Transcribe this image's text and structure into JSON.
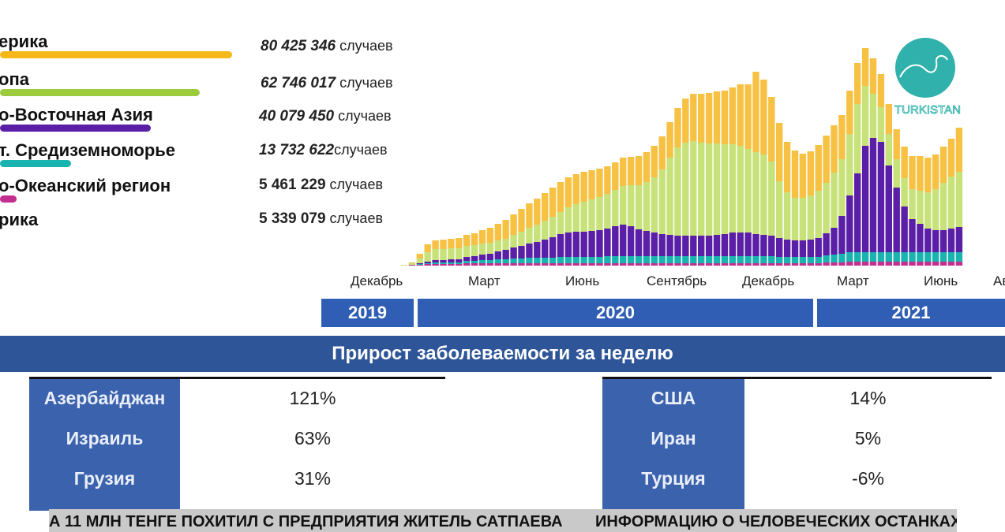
{
  "legend": [
    {
      "label": "ерика",
      "value_num": "80 425 346",
      "value_unit": "случаев",
      "color": "#f5b818"
    },
    {
      "label": "опа",
      "value_num": "62 746 017",
      "value_unit": "случаев",
      "color": "#9ccc3c"
    },
    {
      "label": "о-Восточная Азия",
      "value_num": "40 079 450",
      "value_unit": "случаев",
      "color": "#5a1fa6"
    },
    {
      "label": "т. Средиземноморье",
      "value_num": "13 732 622",
      "value_unit": "случаев",
      "color": "#19b4b0"
    },
    {
      "label": "о-Океанский регион",
      "value_num": "5 461 229",
      "value_unit": "случаев",
      "color": "#c42e8e"
    },
    {
      "label": "рика",
      "value_num": "5 339 079",
      "value_unit": "случаев",
      "color": "#e03040"
    }
  ],
  "chart_data": {
    "type": "bar",
    "stacked": true,
    "x_tick_labels": [
      "Декабрь",
      "Март",
      "Июнь",
      "Сентябрь",
      "Декабрь",
      "Март",
      "Июнь",
      "Ав"
    ],
    "years": [
      "2019",
      "2020",
      "2021"
    ],
    "series_colors": [
      "#c42e8e",
      "#19b4b0",
      "#5a1fa6",
      "#c8e27a",
      "#f7c143"
    ],
    "weeks": [
      [
        0,
        0,
        0,
        0,
        0
      ],
      [
        0,
        0,
        0,
        0,
        0
      ],
      [
        0,
        0,
        0,
        1,
        0
      ],
      [
        1,
        0,
        0,
        2,
        1
      ],
      [
        1,
        1,
        1,
        6,
        6
      ],
      [
        2,
        1,
        2,
        12,
        10
      ],
      [
        2,
        2,
        3,
        14,
        11
      ],
      [
        2,
        2,
        3,
        14,
        12
      ],
      [
        2,
        2,
        4,
        14,
        12
      ],
      [
        2,
        2,
        4,
        14,
        13
      ],
      [
        3,
        3,
        5,
        14,
        14
      ],
      [
        3,
        3,
        6,
        14,
        15
      ],
      [
        3,
        4,
        7,
        14,
        17
      ],
      [
        3,
        4,
        8,
        14,
        19
      ],
      [
        3,
        5,
        10,
        14,
        21
      ],
      [
        3,
        5,
        12,
        14,
        24
      ],
      [
        3,
        6,
        14,
        16,
        26
      ],
      [
        3,
        6,
        16,
        18,
        29
      ],
      [
        3,
        7,
        18,
        20,
        31
      ],
      [
        3,
        7,
        20,
        22,
        33
      ],
      [
        3,
        7,
        23,
        24,
        35
      ],
      [
        3,
        7,
        26,
        26,
        37
      ],
      [
        3,
        8,
        29,
        28,
        38
      ],
      [
        3,
        8,
        31,
        32,
        38
      ],
      [
        3,
        8,
        32,
        35,
        38
      ],
      [
        3,
        8,
        32,
        38,
        38
      ],
      [
        3,
        8,
        33,
        40,
        37
      ],
      [
        3,
        8,
        34,
        42,
        36
      ],
      [
        3,
        9,
        35,
        44,
        35
      ],
      [
        3,
        9,
        38,
        46,
        35
      ],
      [
        3,
        9,
        40,
        49,
        36
      ],
      [
        3,
        9,
        38,
        52,
        36
      ],
      [
        3,
        9,
        34,
        56,
        37
      ],
      [
        3,
        9,
        32,
        62,
        38
      ],
      [
        3,
        9,
        30,
        70,
        40
      ],
      [
        3,
        9,
        28,
        82,
        42
      ],
      [
        3,
        9,
        27,
        98,
        45
      ],
      [
        3,
        9,
        26,
        112,
        50
      ],
      [
        3,
        9,
        26,
        118,
        56
      ],
      [
        3,
        9,
        26,
        120,
        60
      ],
      [
        3,
        9,
        26,
        118,
        62
      ],
      [
        3,
        9,
        26,
        117,
        64
      ],
      [
        3,
        9,
        27,
        116,
        66
      ],
      [
        3,
        9,
        28,
        114,
        68
      ],
      [
        3,
        9,
        30,
        112,
        72
      ],
      [
        3,
        9,
        30,
        110,
        78
      ],
      [
        3,
        9,
        30,
        106,
        82
      ],
      [
        3,
        9,
        28,
        104,
        102
      ],
      [
        3,
        9,
        27,
        102,
        95
      ],
      [
        3,
        9,
        26,
        94,
        82
      ],
      [
        3,
        8,
        24,
        72,
        74
      ],
      [
        3,
        8,
        22,
        60,
        64
      ],
      [
        3,
        8,
        21,
        54,
        60
      ],
      [
        3,
        8,
        21,
        54,
        56
      ],
      [
        3,
        8,
        22,
        56,
        56
      ],
      [
        3,
        8,
        24,
        60,
        58
      ],
      [
        4,
        9,
        28,
        64,
        60
      ],
      [
        4,
        10,
        34,
        70,
        60
      ],
      [
        4,
        11,
        48,
        72,
        56
      ],
      [
        5,
        12,
        72,
        78,
        55
      ],
      [
        5,
        12,
        100,
        88,
        52
      ],
      [
        5,
        12,
        135,
        76,
        48
      ],
      [
        5,
        12,
        145,
        56,
        45
      ],
      [
        5,
        12,
        140,
        44,
        42
      ],
      [
        5,
        12,
        110,
        40,
        38
      ],
      [
        5,
        12,
        82,
        36,
        38
      ],
      [
        5,
        12,
        58,
        36,
        40
      ],
      [
        5,
        12,
        42,
        38,
        42
      ],
      [
        5,
        12,
        36,
        42,
        44
      ],
      [
        5,
        12,
        30,
        46,
        44
      ],
      [
        5,
        12,
        28,
        52,
        44
      ],
      [
        5,
        12,
        28,
        60,
        46
      ],
      [
        5,
        12,
        30,
        66,
        48
      ],
      [
        5,
        12,
        32,
        70,
        56
      ]
    ],
    "weekly_growth_title": "Прирост заболеваемости за неделю",
    "weekly_growth_left": [
      {
        "country": "Азербайджан",
        "value": "121%"
      },
      {
        "country": "Израиль",
        "value": "63%"
      },
      {
        "country": "Грузия",
        "value": "31%"
      }
    ],
    "weekly_growth_right": [
      {
        "country": "США",
        "value": "14%"
      },
      {
        "country": "Иран",
        "value": "5%"
      },
      {
        "country": "Турция",
        "value": "-6%"
      }
    ]
  },
  "ticker": {
    "left": "А 11 МЛН ТЕНГЕ ПОХИТИЛ С ПРЕДПРИЯТИЯ ЖИТЕЛЬ САТПАЕВА",
    "right": "ИНФОРМАЦИЮ О ЧЕЛОВЕЧЕСКИХ ОСТАНКАХ Н"
  },
  "logo": {
    "text": "TURKISTAN",
    "color": "#1aa9a3"
  }
}
